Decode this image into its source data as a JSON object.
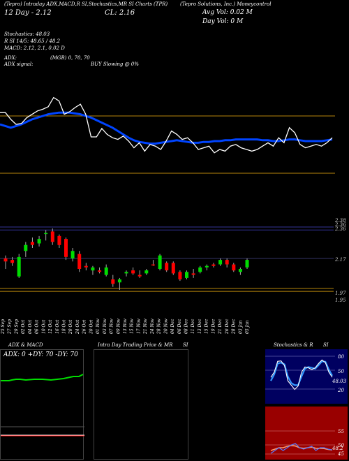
{
  "header": {
    "indicators_line": "(Tepro) Intraday ADX,MACD,R SI,Stochastics,MR SI Charts",
    "symbol": "(TPR)",
    "company": "(Tepro Solutions, Inc.) Moneycontrol",
    "date_label": "12 Day",
    "prev_close": "2.12",
    "close_label": "CL: 2.16",
    "avg_vol": "Avg Vol: 0.02",
    "avg_vol_unit": "M",
    "day_vol": "Day Vol: 0",
    "day_vol_unit": "M"
  },
  "info": {
    "stochastics": "Stochastics: 48.03",
    "rsi": "R          SI 14/5: 48.65 / 48.2",
    "macd": "MACD: 2.12, 2.1, 0.02  D",
    "adx": "ADX:",
    "adx_values": "(MGB) 0, 70,  70",
    "adx_signal": "ADX  signal:",
    "buy_signal": "BUY Slowing @ 0%"
  },
  "price_labels": {
    "upper1": "2.38",
    "upper2": "2.36",
    "upper3": "2.36",
    "mid": "2.17",
    "lower1": "1.97",
    "lower2": "1.95"
  },
  "dates": [
    "25 Sep",
    "27 Sep",
    "29 Sep",
    "02 Oct",
    "04 Oct",
    "06 Oct",
    "10 Oct",
    "12 Oct",
    "16 Oct",
    "18 Oct",
    "20 Oct",
    "24 Oct",
    "26 Oct",
    "30 Oct",
    "01 Nov",
    "03 Nov",
    "07 Nov",
    "09 Nov",
    "13 Nov",
    "15 Nov",
    "17 Nov",
    "21 Nov",
    "24 Nov",
    "28 Nov",
    "30 Nov",
    "04 Dec",
    "06 Dec",
    "08 Dec",
    "11 Dec",
    "13 Dec",
    "15 Dec",
    "19 Dec",
    "21 Dec",
    "26 Dec",
    "28 Dec",
    "03 Jan",
    "05 Jan"
  ],
  "panels": {
    "adx_title": "ADX  & MACD",
    "adx_values": "ADX: 0  +DY: 70  -DY: 70",
    "mrsi_title": "Intra  Day Trading Price  & MR",
    "mrsi_suffix": "SI",
    "stoch_title": "Stochastics & R",
    "stoch_suffix": "SI",
    "stoch_scale": [
      "80",
      "50",
      "20"
    ],
    "stoch_value": "48.03",
    "rsi_scale": [
      "55",
      "50",
      "45"
    ],
    "rsi_value": "48.2"
  },
  "colors": {
    "up": "#00dd00",
    "down": "#ff0000",
    "ma": "#0044ff",
    "level": "#b8860b",
    "rsi_bg": "#990000",
    "stoch_bg": "#000060"
  },
  "chart_data": {
    "type": "candlestick",
    "x": [
      "25 Sep",
      "27 Sep",
      "29 Sep",
      "02 Oct",
      "04 Oct",
      "06 Oct",
      "10 Oct",
      "12 Oct",
      "16 Oct",
      "18 Oct",
      "20 Oct",
      "24 Oct",
      "26 Oct",
      "30 Oct",
      "01 Nov",
      "03 Nov",
      "07 Nov",
      "09 Nov",
      "13 Nov",
      "15 Nov",
      "17 Nov",
      "21 Nov",
      "24 Nov",
      "28 Nov",
      "30 Nov",
      "04 Dec",
      "06 Dec",
      "08 Dec",
      "11 Dec",
      "13 Dec",
      "15 Dec",
      "19 Dec",
      "21 Dec",
      "26 Dec",
      "28 Dec",
      "03 Jan",
      "05 Jan"
    ],
    "candles": [
      {
        "o": 2.17,
        "h": 2.19,
        "l": 2.1,
        "c": 2.15,
        "up": false
      },
      {
        "o": 2.16,
        "h": 2.18,
        "l": 2.12,
        "c": 2.14,
        "up": false
      },
      {
        "o": 2.05,
        "h": 2.2,
        "l": 2.04,
        "c": 2.18,
        "up": true
      },
      {
        "o": 2.22,
        "h": 2.28,
        "l": 2.18,
        "c": 2.26,
        "up": true
      },
      {
        "o": 2.28,
        "h": 2.31,
        "l": 2.24,
        "c": 2.26,
        "up": false
      },
      {
        "o": 2.27,
        "h": 2.32,
        "l": 2.25,
        "c": 2.3,
        "up": true
      },
      {
        "o": 2.34,
        "h": 2.36,
        "l": 2.29,
        "c": 2.34,
        "up": true
      },
      {
        "o": 2.35,
        "h": 2.37,
        "l": 2.26,
        "c": 2.28,
        "up": false
      },
      {
        "o": 2.32,
        "h": 2.33,
        "l": 2.24,
        "c": 2.26,
        "up": false
      },
      {
        "o": 2.3,
        "h": 2.31,
        "l": 2.16,
        "c": 2.18,
        "up": false
      },
      {
        "o": 2.17,
        "h": 2.24,
        "l": 2.15,
        "c": 2.22,
        "up": true
      },
      {
        "o": 2.2,
        "h": 2.22,
        "l": 2.08,
        "c": 2.1,
        "up": false
      },
      {
        "o": 2.12,
        "h": 2.14,
        "l": 2.09,
        "c": 2.11,
        "up": false
      },
      {
        "o": 2.09,
        "h": 2.12,
        "l": 2.06,
        "c": 2.11,
        "up": true
      },
      {
        "o": 2.09,
        "h": 2.11,
        "l": 2.07,
        "c": 2.08,
        "up": false
      },
      {
        "o": 2.06,
        "h": 2.13,
        "l": 2.05,
        "c": 2.11,
        "up": true
      },
      {
        "o": 2.03,
        "h": 2.06,
        "l": 1.98,
        "c": 2.0,
        "up": false
      },
      {
        "o": 2.01,
        "h": 2.04,
        "l": 1.96,
        "c": 2.03,
        "up": true
      },
      {
        "o": 2.07,
        "h": 2.09,
        "l": 2.05,
        "c": 2.08,
        "up": true
      },
      {
        "o": 2.09,
        "h": 2.11,
        "l": 2.06,
        "c": 2.07,
        "up": false
      },
      {
        "o": 2.06,
        "h": 2.09,
        "l": 2.04,
        "c": 2.05,
        "up": false
      },
      {
        "o": 2.07,
        "h": 2.1,
        "l": 2.06,
        "c": 2.09,
        "up": true
      },
      {
        "o": 2.13,
        "h": 2.16,
        "l": 2.12,
        "c": 2.13,
        "up": false
      },
      {
        "o": 2.1,
        "h": 2.2,
        "l": 2.09,
        "c": 2.19,
        "up": true
      },
      {
        "o": 2.14,
        "h": 2.15,
        "l": 2.08,
        "c": 2.09,
        "up": false
      },
      {
        "o": 2.14,
        "h": 2.15,
        "l": 2.06,
        "c": 2.07,
        "up": false
      },
      {
        "o": 2.08,
        "h": 2.09,
        "l": 2.02,
        "c": 2.03,
        "up": false
      },
      {
        "o": 2.04,
        "h": 2.09,
        "l": 2.03,
        "c": 2.08,
        "up": true
      },
      {
        "o": 2.07,
        "h": 2.1,
        "l": 2.04,
        "c": 2.06,
        "up": false
      },
      {
        "o": 2.08,
        "h": 2.12,
        "l": 2.07,
        "c": 2.11,
        "up": true
      },
      {
        "o": 2.11,
        "h": 2.13,
        "l": 2.09,
        "c": 2.12,
        "up": true
      },
      {
        "o": 2.13,
        "h": 2.14,
        "l": 2.11,
        "c": 2.12,
        "up": false
      },
      {
        "o": 2.13,
        "h": 2.17,
        "l": 2.12,
        "c": 2.16,
        "up": true
      },
      {
        "o": 2.16,
        "h": 2.17,
        "l": 2.11,
        "c": 2.13,
        "up": false
      },
      {
        "o": 2.13,
        "h": 2.14,
        "l": 2.08,
        "c": 2.09,
        "up": false
      },
      {
        "o": 2.08,
        "h": 2.11,
        "l": 2.06,
        "c": 2.1,
        "up": true
      },
      {
        "o": 2.11,
        "h": 2.17,
        "l": 2.1,
        "c": 2.16,
        "up": true
      }
    ],
    "price_range": [
      1.89,
      2.45
    ],
    "levels": [
      2.38,
      2.36,
      2.17,
      1.97,
      1.95
    ],
    "indicator_line": [
      74,
      74,
      66,
      60,
      61,
      68,
      72,
      76,
      78,
      81,
      92,
      88,
      72,
      75,
      80,
      84,
      72,
      45,
      45,
      55,
      48,
      44,
      42,
      46,
      40,
      32,
      38,
      28,
      36,
      34,
      30,
      40,
      52,
      48,
      42,
      44,
      38,
      30,
      32,
      34,
      26,
      30,
      28,
      34,
      36,
      32,
      30,
      28,
      30,
      34,
      38,
      34,
      44,
      38,
      56,
      50,
      36,
      32,
      34,
      36,
      34,
      38,
      44
    ],
    "ma_line": [
      60,
      58,
      56,
      58,
      60,
      63,
      66,
      68,
      70,
      72,
      73,
      74,
      74,
      74,
      73,
      72,
      70,
      68,
      65,
      62,
      59,
      56,
      52,
      48,
      44,
      41,
      39,
      38,
      37,
      37,
      38,
      39,
      40,
      41,
      40,
      39,
      38,
      38,
      39,
      39,
      40,
      40,
      41,
      41,
      42,
      42,
      42,
      42,
      42,
      41,
      41,
      40,
      40,
      41,
      42,
      42,
      41,
      40,
      40,
      40,
      40,
      41,
      42
    ],
    "indicator_range": [
      0,
      100
    ],
    "stoch_line": [
      48,
      60,
      85,
      86,
      75,
      40,
      30,
      20,
      28,
      60,
      72,
      70,
      66,
      70,
      80,
      88,
      82,
      60,
      48
    ],
    "stoch_signal": [
      40,
      55,
      80,
      82,
      78,
      50,
      35,
      30,
      30,
      50,
      68,
      72,
      70,
      68,
      76,
      85,
      84,
      66,
      52
    ],
    "rsi_line": [
      47,
      48,
      49,
      48,
      49,
      50,
      50.5,
      49,
      48.5,
      49,
      49.5,
      48,
      49,
      49,
      48.5,
      48.2
    ],
    "rsi_signal": [
      48,
      48.5,
      49,
      49,
      49.5,
      49.8,
      49.6,
      49,
      48.8,
      49,
      49.2,
      48.8,
      48.8,
      48.7,
      48.4,
      48.2
    ]
  }
}
